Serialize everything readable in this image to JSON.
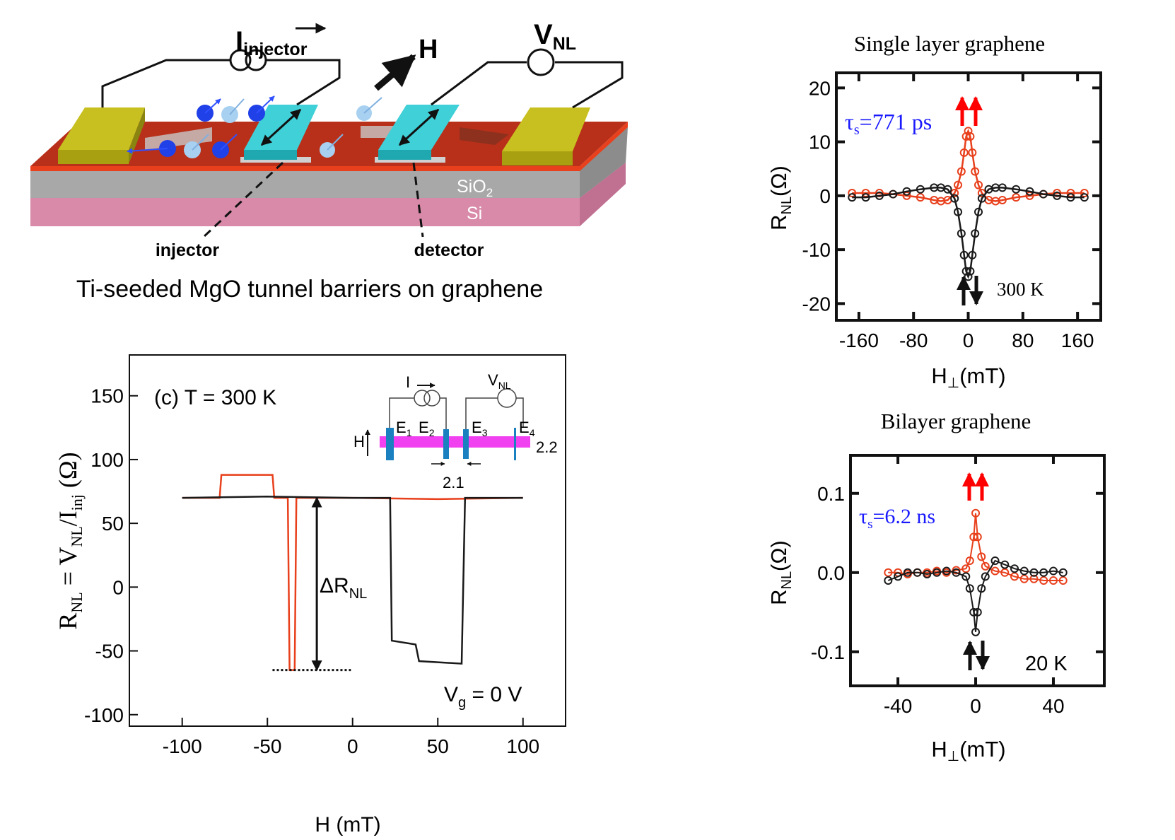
{
  "diagram": {
    "current": [
      "I",
      "injector"
    ],
    "field": "H",
    "voltage": [
      "V",
      "NL"
    ],
    "oxide": [
      "SiO",
      "2"
    ],
    "substrate": "Si",
    "injector": "injector",
    "detector": "detector",
    "caption": "Ti-seeded MgO tunnel barriers on graphene"
  },
  "chart_data": [
    {
      "type": "line",
      "xlabel": "H (mT)",
      "ylabel": [
        "R",
        "NL",
        " = V",
        "NL",
        "/I",
        "inj",
        " (Ω)"
      ],
      "annotation": "(c)  T = 300 K",
      "gate": [
        "V",
        "g",
        " = 0 V"
      ],
      "delta": {
        "label": [
          "ΔR",
          "NL"
        ],
        "x": -21,
        "y": [
          -65,
          70
        ]
      },
      "reference_line": {
        "y": -65,
        "x": [
          -47,
          -1
        ]
      },
      "inset": {
        "current": "I",
        "voltage": [
          "V",
          "NL"
        ],
        "field": "H",
        "electrodes": [
          [
            "E",
            "1"
          ],
          [
            "E",
            "2"
          ],
          [
            "E",
            "3"
          ],
          [
            "E",
            "4"
          ]
        ],
        "spacing_a": "2.2",
        "spacing_b": "2.1"
      },
      "xlim": [
        -131,
        125
      ],
      "ylim": [
        -109,
        182
      ],
      "xticks": [
        -100,
        -50,
        0,
        50,
        100
      ],
      "yticks": [
        -100,
        -50,
        0,
        50,
        100,
        150
      ],
      "series": [
        {
          "color": "#e8401c",
          "x": [
            -100,
            -78,
            -77,
            -47,
            -46,
            -38,
            -37,
            -34,
            -33,
            0,
            50,
            100
          ],
          "values": [
            70,
            70,
            88,
            88,
            70,
            70,
            -65,
            -65,
            70,
            70,
            69,
            70
          ]
        },
        {
          "color": "#1a1a1a",
          "x": [
            -100,
            -50,
            0,
            22,
            23,
            37,
            39,
            64,
            66,
            100
          ],
          "values": [
            70,
            71,
            70,
            70,
            -42,
            -45,
            -58,
            -60,
            70,
            70
          ]
        }
      ]
    },
    {
      "type": "scatter",
      "title": "Single layer graphene",
      "xlabel": [
        "H",
        "⊥",
        "(mT)"
      ],
      "ylabel": [
        "R",
        "NL",
        "(Ω)"
      ],
      "annotation": [
        "τ",
        "s",
        "=771 ps"
      ],
      "temperature": "300 K",
      "fit_line": true,
      "xlim": [
        -193,
        194
      ],
      "ylim": [
        -23.1,
        22.8
      ],
      "xticks": [
        -160,
        -80,
        0,
        80,
        160
      ],
      "yticks": [
        -20,
        -10,
        0,
        10,
        20
      ],
      "series": [
        {
          "color": "#e8401c",
          "x": [
            -170,
            -150,
            -130,
            -110,
            -90,
            -70,
            -50,
            -40,
            -30,
            -20,
            -15,
            -10,
            -6,
            -3,
            0,
            3,
            6,
            10,
            15,
            20,
            30,
            40,
            50,
            70,
            90,
            110,
            130,
            150,
            170
          ],
          "values": [
            0.5,
            0.5,
            0.5,
            0.3,
            0,
            -0.3,
            -0.8,
            -1,
            -0.8,
            0.5,
            2,
            4.5,
            8,
            11,
            12,
            11,
            8,
            4.5,
            2,
            0.5,
            -0.8,
            -1,
            -0.8,
            -0.3,
            0,
            0.3,
            0.5,
            0.5,
            0.5
          ]
        },
        {
          "color": "#1a1a1a",
          "x": [
            -170,
            -150,
            -130,
            -110,
            -90,
            -70,
            -50,
            -40,
            -30,
            -20,
            -15,
            -10,
            -6,
            -3,
            0,
            3,
            6,
            10,
            15,
            20,
            30,
            40,
            50,
            70,
            90,
            110,
            130,
            150,
            170
          ],
          "values": [
            -0.3,
            -0.3,
            0,
            0.3,
            0.8,
            1.2,
            1.5,
            1.5,
            1.2,
            -0.5,
            -3,
            -7,
            -11,
            -14,
            -15,
            -14,
            -11,
            -7,
            -3,
            -0.5,
            1.2,
            1.5,
            1.5,
            1.2,
            0.8,
            0.3,
            0,
            -0.3,
            -0.3
          ]
        }
      ]
    },
    {
      "type": "scatter",
      "title": "Bilayer graphene",
      "xlabel": [
        "H",
        "⊥",
        "(mT)"
      ],
      "ylabel": [
        "R",
        "NL",
        "(Ω)"
      ],
      "annotation": [
        "τ",
        "s",
        "=6.2 ns"
      ],
      "temperature": "20 K",
      "fit_line": true,
      "xlim": [
        -64.4,
        66.2
      ],
      "ylim": [
        -0.143,
        0.148
      ],
      "xticks": [
        -40,
        0,
        40
      ],
      "yticks": [
        -0.1,
        {
          "value": 0,
          "label": "0.0"
        },
        0.1
      ],
      "series": [
        {
          "color": "#e8401c",
          "x": [
            -45,
            -40,
            -35,
            -30,
            -25,
            -20,
            -15,
            -10,
            -5,
            -3,
            -1,
            0,
            1,
            3,
            5,
            10,
            15,
            20,
            25,
            30,
            35,
            40,
            45
          ],
          "values": [
            0,
            0,
            -0.002,
            0,
            0,
            0.002,
            0,
            0.003,
            0.005,
            0.015,
            0.045,
            0.075,
            0.045,
            0.02,
            0.008,
            0.002,
            0,
            -0.005,
            -0.008,
            -0.008,
            -0.01,
            -0.01,
            -0.01
          ]
        },
        {
          "color": "#1a1a1a",
          "x": [
            -45,
            -40,
            -35,
            -30,
            -25,
            -20,
            -15,
            -10,
            -5,
            -3,
            -1,
            0,
            1,
            3,
            5,
            10,
            15,
            20,
            25,
            30,
            35,
            40,
            45
          ],
          "values": [
            -0.01,
            -0.005,
            0,
            0,
            -0.002,
            0,
            0.002,
            0,
            -0.005,
            -0.02,
            -0.05,
            -0.075,
            -0.05,
            -0.02,
            -0.005,
            0.015,
            0.01,
            0.005,
            0.002,
            0,
            0,
            0.002,
            0
          ]
        }
      ]
    }
  ]
}
